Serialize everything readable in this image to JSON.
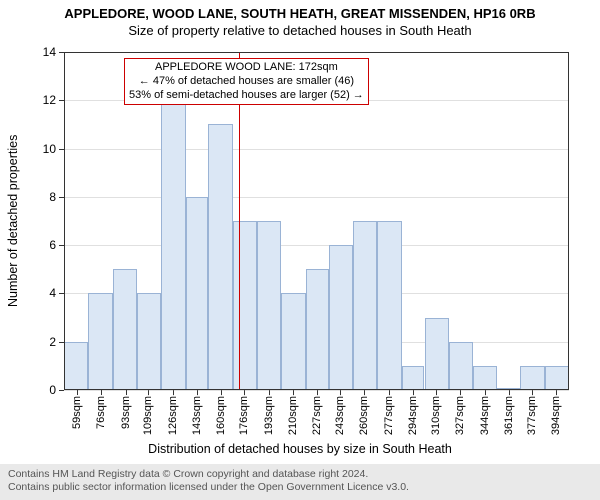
{
  "title": "APPLEDORE, WOOD LANE, SOUTH HEATH, GREAT MISSENDEN, HP16 0RB",
  "subtitle": "Size of property relative to detached houses in South Heath",
  "ylabel": "Number of detached properties",
  "xlabel": "Distribution of detached houses by size in South Heath",
  "footer": {
    "line1": "Contains HM Land Registry data © Crown copyright and database right 2024.",
    "line2": "Contains public sector information licensed under the Open Government Licence v3.0.",
    "background": "#e9e9e9",
    "text_color": "#555555"
  },
  "annotation": {
    "line1": "APPLEDORE WOOD LANE: 172sqm",
    "line2": "← 47% of detached houses are smaller (46)",
    "line3": "53% of semi-detached houses are larger (52) →",
    "border_color": "#cc0000"
  },
  "chart": {
    "type": "histogram",
    "background": "#ffffff",
    "grid_color": "#e0e0e0",
    "bar_fill": "#dbe7f5",
    "bar_border": "#9ab3d5",
    "refline_color": "#cc0000",
    "refline_x": 172,
    "xlim": [
      50,
      403
    ],
    "ylim": [
      0,
      14
    ],
    "ytick_step": 2,
    "xticks": [
      59,
      76,
      93,
      109,
      126,
      143,
      160,
      176,
      193,
      210,
      227,
      243,
      260,
      277,
      294,
      310,
      327,
      344,
      361,
      377,
      394
    ],
    "xtick_suffix": "sqm",
    "bars": [
      {
        "x0": 50,
        "x1": 67,
        "y": 2
      },
      {
        "x0": 67,
        "x1": 84,
        "y": 4
      },
      {
        "x0": 84,
        "x1": 101,
        "y": 5
      },
      {
        "x0": 101,
        "x1": 118,
        "y": 4
      },
      {
        "x0": 118,
        "x1": 135,
        "y": 12
      },
      {
        "x0": 135,
        "x1": 151,
        "y": 8
      },
      {
        "x0": 151,
        "x1": 168,
        "y": 11
      },
      {
        "x0": 168,
        "x1": 185,
        "y": 7
      },
      {
        "x0": 185,
        "x1": 202,
        "y": 7
      },
      {
        "x0": 202,
        "x1": 219,
        "y": 4
      },
      {
        "x0": 219,
        "x1": 235,
        "y": 5
      },
      {
        "x0": 235,
        "x1": 252,
        "y": 6
      },
      {
        "x0": 252,
        "x1": 269,
        "y": 7
      },
      {
        "x0": 269,
        "x1": 286,
        "y": 7
      },
      {
        "x0": 286,
        "x1": 302,
        "y": 1
      },
      {
        "x0": 302,
        "x1": 319,
        "y": 3
      },
      {
        "x0": 319,
        "x1": 336,
        "y": 2
      },
      {
        "x0": 336,
        "x1": 353,
        "y": 1
      },
      {
        "x0": 353,
        "x1": 369,
        "y": 0
      },
      {
        "x0": 369,
        "x1": 386,
        "y": 1
      },
      {
        "x0": 386,
        "x1": 403,
        "y": 1
      }
    ]
  }
}
